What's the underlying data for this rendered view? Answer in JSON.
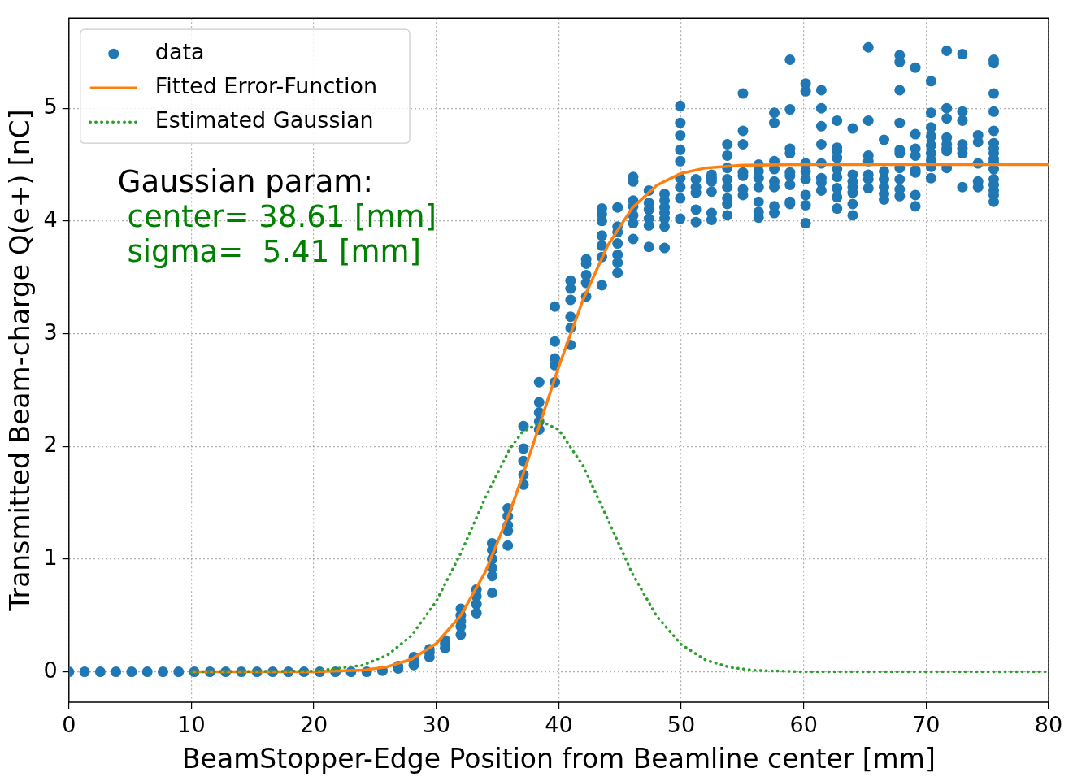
{
  "chart_data": {
    "type": "scatter",
    "xlabel": "BeamStopper-Edge Position from Beamline center [mm]",
    "ylabel": "Transmitted Beam-charge Q(e+) [nC]",
    "xlim": [
      0,
      80
    ],
    "ylim": [
      -0.27,
      5.8
    ],
    "xticks": [
      0,
      10,
      20,
      30,
      40,
      50,
      60,
      70,
      80
    ],
    "yticks": [
      0,
      1,
      2,
      3,
      4,
      5
    ],
    "grid": true,
    "legend": "top left",
    "annotations": [
      "Gaussian param:",
      " center= 38.61 [mm]",
      " sigma=  5.41 [mm]"
    ],
    "series": [
      {
        "name": "data",
        "type": "scatter",
        "marker": "circle",
        "color": "#1f77b4",
        "x": [
          0,
          1.28,
          2.56,
          3.84,
          5.12,
          6.4,
          7.68,
          8.96,
          10.24,
          11.52,
          12.8,
          14.08,
          15.36,
          16.64,
          17.92,
          19.2,
          20.48,
          21.76,
          23.04,
          24.32,
          25.6,
          26.88,
          26.88,
          28.16,
          28.16,
          28.16,
          29.44,
          29.44,
          29.44,
          30.72,
          30.72,
          30.72,
          32,
          32,
          32,
          32,
          32,
          33.28,
          33.28,
          33.28,
          33.28,
          34.56,
          34.56,
          34.56,
          34.56,
          34.56,
          34.56,
          35.84,
          35.84,
          35.84,
          35.84,
          35.84,
          37.12,
          37.12,
          37.12,
          37.12,
          37.12,
          38.4,
          38.4,
          38.4,
          38.4,
          38.4,
          39.68,
          39.68,
          39.68,
          39.68,
          39.68,
          40.96,
          40.96,
          40.96,
          40.96,
          40.96,
          40.96,
          42.24,
          42.24,
          42.24,
          42.24,
          42.24,
          43.52,
          43.52,
          43.52,
          43.52,
          43.52,
          43.52,
          43.52,
          44.8,
          44.8,
          44.8,
          44.8,
          44.8,
          44.8,
          44.8,
          46.08,
          46.08,
          46.08,
          46.08,
          46.08,
          46.08,
          46.08,
          47.36,
          47.36,
          47.36,
          47.36,
          47.36,
          47.36,
          48.64,
          48.64,
          48.64,
          48.64,
          48.64,
          48.64,
          48.64,
          49.92,
          49.92,
          49.92,
          49.92,
          49.92,
          49.92,
          49.92,
          49.92,
          49.92,
          51.2,
          51.2,
          51.2,
          51.2,
          51.2,
          52.48,
          52.48,
          52.48,
          52.48,
          52.48,
          52.48,
          53.76,
          53.76,
          53.76,
          53.76,
          53.76,
          53.76,
          53.76,
          53.76,
          55.04,
          55.04,
          55.04,
          55.04,
          55.04,
          55.04,
          55.04,
          56.32,
          56.32,
          56.32,
          56.32,
          56.32,
          56.32,
          56.32,
          57.6,
          57.6,
          57.6,
          57.6,
          57.6,
          57.6,
          57.6,
          57.6,
          58.88,
          58.88,
          58.88,
          58.88,
          58.88,
          58.88,
          58.88,
          58.88,
          58.88,
          60.16,
          60.16,
          60.16,
          60.16,
          60.16,
          60.16,
          60.16,
          60.16,
          61.44,
          61.44,
          61.44,
          61.44,
          61.44,
          61.44,
          61.44,
          61.44,
          62.72,
          62.72,
          62.72,
          62.72,
          62.72,
          62.72,
          62.72,
          62.72,
          62.72,
          64,
          64,
          64,
          64,
          64,
          64,
          64,
          65.28,
          65.28,
          65.28,
          65.28,
          65.28,
          65.28,
          65.28,
          66.56,
          66.56,
          66.56,
          66.56,
          66.56,
          66.56,
          67.84,
          67.84,
          67.84,
          67.84,
          67.84,
          67.84,
          67.84,
          67.84,
          67.84,
          67.84,
          69.12,
          69.12,
          69.12,
          69.12,
          69.12,
          69.12,
          69.12,
          69.12,
          70.4,
          70.4,
          70.4,
          70.4,
          70.4,
          70.4,
          70.4,
          70.4,
          70.4,
          71.68,
          71.68,
          71.68,
          71.68,
          71.68,
          71.68,
          71.68,
          71.68,
          72.96,
          72.96,
          72.96,
          72.96,
          72.96,
          72.96,
          72.96,
          74.24,
          74.24,
          74.24,
          74.24,
          74.24,
          75.52,
          75.52,
          75.52,
          75.52,
          75.52,
          75.52,
          75.52,
          75.52,
          75.52,
          75.52,
          75.52,
          75.52,
          75.52,
          75.52,
          75.52,
          75.52
        ],
        "values": [
          0,
          0,
          0,
          0,
          0,
          0,
          0,
          0,
          0,
          0,
          0,
          0,
          0,
          0,
          0,
          0,
          0,
          0,
          0,
          0,
          0.01,
          0.03,
          0.05,
          0.06,
          0.1,
          0.13,
          0.13,
          0.17,
          0.2,
          0.21,
          0.25,
          0.28,
          0.33,
          0.4,
          0.45,
          0.5,
          0.56,
          0.52,
          0.6,
          0.67,
          0.73,
          0.7,
          0.85,
          0.92,
          1.0,
          1.08,
          1.14,
          1.12,
          1.25,
          1.3,
          1.38,
          1.45,
          1.66,
          1.75,
          1.87,
          1.98,
          2.18,
          2.15,
          2.22,
          2.3,
          2.39,
          2.57,
          2.57,
          2.72,
          2.78,
          2.93,
          3.24,
          2.9,
          3.05,
          3.15,
          3.3,
          3.4,
          3.47,
          3.33,
          3.45,
          3.52,
          3.62,
          3.66,
          3.43,
          3.68,
          3.78,
          3.87,
          4.0,
          4.06,
          4.11,
          3.54,
          3.63,
          3.7,
          3.8,
          3.9,
          3.95,
          4.12,
          3.84,
          3.98,
          4.05,
          4.13,
          4.18,
          4.35,
          4.39,
          3.77,
          3.96,
          4.02,
          4.1,
          4.16,
          4.27,
          3.76,
          3.95,
          4.02,
          4.07,
          4.12,
          4.18,
          4.24,
          4.02,
          4.2,
          4.3,
          4.38,
          4.53,
          4.63,
          4.76,
          4.87,
          5.02,
          3.99,
          4.1,
          4.25,
          4.3,
          4.37,
          4.01,
          4.07,
          4.26,
          4.35,
          4.38,
          4.41,
          4.05,
          4.15,
          4.2,
          4.3,
          4.37,
          4.47,
          4.58,
          4.68,
          4.23,
          4.28,
          4.4,
          4.43,
          4.68,
          4.8,
          5.13,
          4.03,
          4.08,
          4.17,
          4.3,
          4.38,
          4.44,
          4.5,
          4.07,
          4.13,
          4.3,
          4.35,
          4.46,
          4.53,
          4.87,
          4.96,
          4.15,
          4.17,
          4.32,
          4.4,
          4.43,
          4.6,
          4.64,
          4.99,
          5.43,
          3.98,
          4.14,
          4.23,
          4.37,
          4.44,
          4.51,
          5.15,
          5.22,
          4.27,
          4.34,
          4.38,
          4.51,
          4.68,
          4.84,
          5.0,
          5.16,
          4.11,
          4.21,
          4.29,
          4.39,
          4.46,
          4.56,
          4.62,
          4.65,
          4.89,
          4.05,
          4.15,
          4.25,
          4.3,
          4.35,
          4.41,
          4.82,
          4.29,
          4.37,
          4.41,
          4.53,
          4.58,
          4.89,
          5.54,
          4.19,
          4.24,
          4.3,
          4.37,
          4.44,
          4.72,
          4.22,
          4.28,
          4.37,
          4.47,
          4.6,
          4.63,
          4.87,
          5.16,
          5.41,
          5.47,
          4.13,
          4.23,
          4.43,
          4.45,
          4.58,
          4.64,
          4.77,
          5.36,
          4.38,
          4.48,
          4.54,
          4.6,
          4.67,
          4.75,
          4.83,
          4.96,
          5.24,
          4.47,
          4.62,
          4.64,
          4.68,
          4.74,
          4.91,
          5.0,
          5.51,
          4.3,
          4.6,
          4.64,
          4.68,
          4.89,
          4.97,
          5.48,
          4.3,
          4.35,
          4.51,
          4.7,
          4.76,
          4.17,
          4.23,
          4.27,
          4.32,
          4.37,
          4.46,
          4.52,
          4.55,
          4.6,
          4.64,
          4.69,
          4.8,
          4.97,
          5.13,
          5.4,
          5.43
        ]
      },
      {
        "name": "Fitted Error-Function",
        "type": "line",
        "line_style": "solid",
        "color": "#ff7f0e",
        "x": [
          10,
          20,
          24,
          26,
          28,
          30,
          32,
          34,
          36,
          37,
          38,
          39,
          40,
          42,
          44,
          46,
          48,
          50,
          52,
          55,
          60,
          80
        ],
        "values": [
          0,
          0.001,
          0.014,
          0.044,
          0.112,
          0.251,
          0.5,
          0.885,
          1.417,
          1.724,
          2.048,
          2.379,
          2.707,
          3.305,
          3.782,
          4.115,
          4.316,
          4.423,
          4.47,
          4.495,
          4.5,
          4.5
        ]
      },
      {
        "name": "Estimated Gaussian",
        "type": "line",
        "line_style": "dotted",
        "color": "#2ca02c",
        "x": [
          10,
          20,
          24,
          26,
          28,
          30,
          32,
          34,
          36,
          37,
          38.61,
          40,
          42,
          44,
          46,
          48,
          50,
          52,
          54,
          56,
          60,
          80
        ],
        "values": [
          0,
          0.006,
          0.058,
          0.147,
          0.324,
          0.626,
          1.052,
          1.544,
          1.976,
          2.124,
          2.22,
          2.148,
          1.825,
          1.352,
          0.873,
          0.493,
          0.242,
          0.104,
          0.039,
          0.013,
          0,
          0
        ]
      }
    ]
  }
}
